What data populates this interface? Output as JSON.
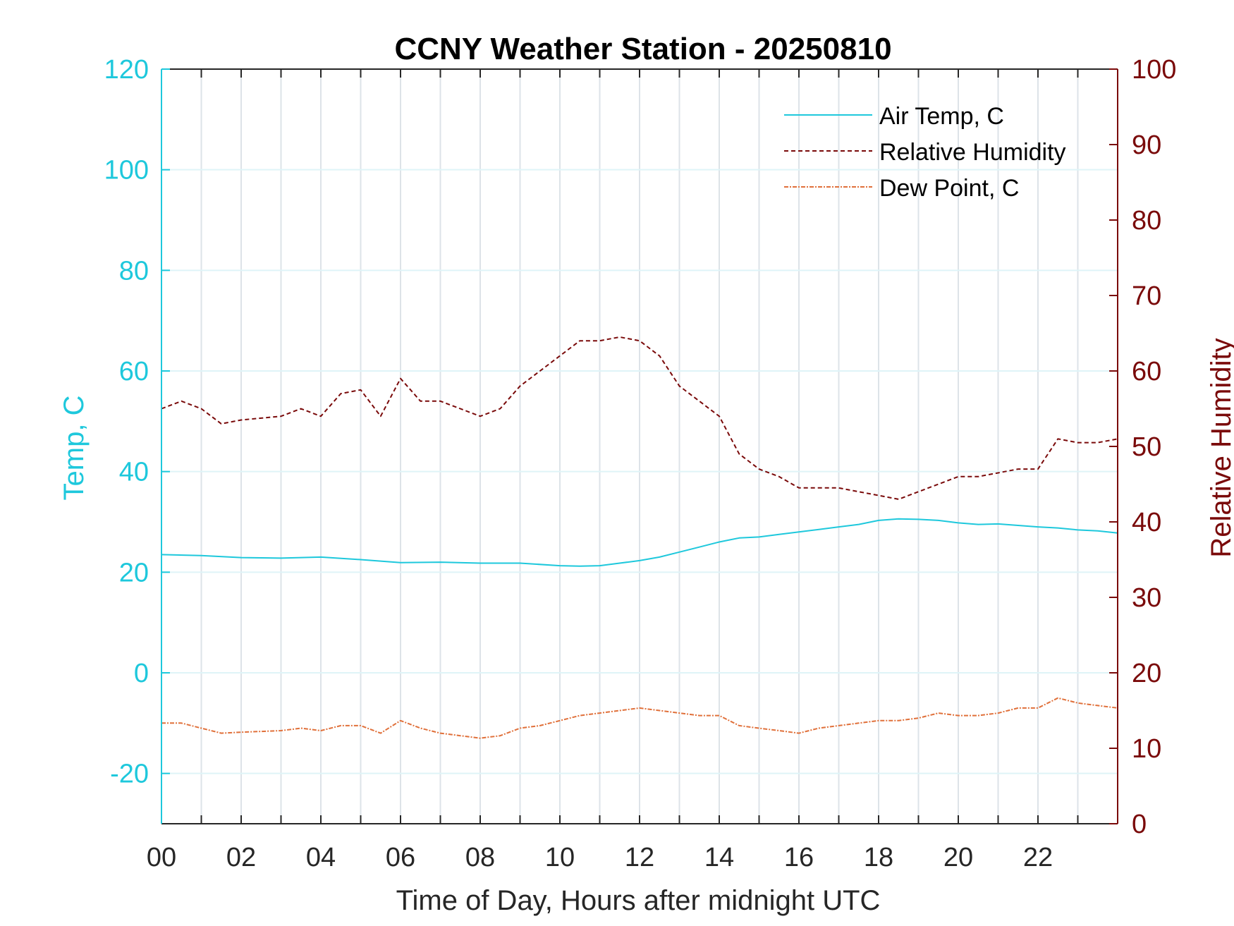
{
  "chart_data": {
    "type": "line",
    "title": "CCNY Weather Station - 20250810",
    "xlabel": "Time of Day, Hours after midnight UTC",
    "ylabel_left": "Temp, C",
    "ylabel_right": "Relative Humidity",
    "xlim": [
      0,
      24
    ],
    "ylim_left": [
      -30,
      120
    ],
    "ylim_right": [
      0,
      100
    ],
    "x_ticks": [
      0,
      2,
      4,
      6,
      8,
      10,
      12,
      14,
      16,
      18,
      20,
      22
    ],
    "x_tick_labels": [
      "00",
      "02",
      "04",
      "06",
      "08",
      "10",
      "12",
      "14",
      "16",
      "18",
      "20",
      "22"
    ],
    "y_left_ticks": [
      -20,
      0,
      20,
      40,
      60,
      80,
      100,
      120
    ],
    "y_right_ticks": [
      0,
      10,
      20,
      30,
      40,
      50,
      60,
      70,
      80,
      90,
      100
    ],
    "grid": "on",
    "legend_position": "top-right",
    "colors": {
      "air_temp": "#1ec8dc",
      "humidity": "#7a0a0a",
      "dew_point": "#e0703a",
      "left_axis": "#1ec8dc",
      "right_axis": "#7a0a0a"
    },
    "series": [
      {
        "name": "Air Temp, C",
        "axis": "left",
        "style": "solid",
        "x": [
          0,
          1,
          2,
          3,
          4,
          5,
          6,
          7,
          8,
          9,
          10,
          10.5,
          11,
          11.5,
          12,
          12.5,
          13,
          13.5,
          14,
          14.5,
          15,
          15.5,
          16,
          16.5,
          17,
          17.5,
          18,
          18.5,
          19,
          19.5,
          20,
          20.5,
          21,
          21.5,
          22,
          22.5,
          23,
          23.5,
          24
        ],
        "values": [
          23.5,
          23.3,
          22.9,
          22.8,
          23.0,
          22.5,
          21.9,
          22.0,
          21.8,
          21.8,
          21.3,
          21.2,
          21.3,
          21.8,
          22.3,
          23.0,
          24.0,
          25.0,
          26.0,
          26.8,
          27.0,
          27.5,
          28.0,
          28.5,
          29.0,
          29.5,
          30.3,
          30.6,
          30.5,
          30.3,
          29.8,
          29.5,
          29.6,
          29.3,
          29.0,
          28.8,
          28.4,
          28.2,
          27.8
        ]
      },
      {
        "name": "Relative Humidity",
        "axis": "right",
        "style": "dashed",
        "x": [
          0,
          0.5,
          1,
          1.5,
          2,
          3,
          3.5,
          4,
          4.5,
          5,
          5.5,
          6,
          6.5,
          7,
          7.5,
          8,
          8.5,
          9,
          9.5,
          10,
          10.5,
          11,
          11.5,
          12,
          12.5,
          13,
          13.5,
          14,
          14.5,
          15,
          15.5,
          16,
          16.5,
          17,
          17.5,
          18,
          18.5,
          19,
          19.5,
          20,
          20.5,
          21,
          21.5,
          22,
          22.5,
          23,
          23.5,
          24
        ],
        "values": [
          55.0,
          56.0,
          55.0,
          53.0,
          53.5,
          54.0,
          55.0,
          54.0,
          57.0,
          57.5,
          54.0,
          59.0,
          56.0,
          56.0,
          55.0,
          54.0,
          55.0,
          58.0,
          60.0,
          62.0,
          64.0,
          64.0,
          64.5,
          64.0,
          62.0,
          58.0,
          56.0,
          54.0,
          49.0,
          47.0,
          46.0,
          44.5,
          44.5,
          44.5,
          44.0,
          43.5,
          43.0,
          44.0,
          45.0,
          46.0,
          46.0,
          46.5,
          47.0,
          47.0,
          51.0,
          50.5,
          50.5,
          51.0
        ]
      },
      {
        "name": "Dew Point, C",
        "axis": "left",
        "style": "dashdot",
        "x": [
          0,
          0.5,
          1,
          1.5,
          2,
          3,
          3.5,
          4,
          4.5,
          5,
          5.5,
          6,
          6.5,
          7,
          7.5,
          8,
          8.5,
          9,
          9.5,
          10,
          10.5,
          11,
          11.5,
          12,
          12.5,
          13,
          13.5,
          14,
          14.5,
          15,
          15.5,
          16,
          16.5,
          17,
          17.5,
          18,
          18.5,
          19,
          19.5,
          20,
          20.5,
          21,
          21.5,
          22,
          22.5,
          23,
          23.5,
          24
        ],
        "values": [
          -10.0,
          -10.0,
          -11.0,
          -12.0,
          -11.8,
          -11.5,
          -11.0,
          -11.5,
          -10.5,
          -10.5,
          -12.0,
          -9.5,
          -11.0,
          -12.0,
          -12.5,
          -13.0,
          -12.5,
          -11.0,
          -10.5,
          -9.5,
          -8.5,
          -8.0,
          -7.5,
          -7.0,
          -7.5,
          -8.0,
          -8.5,
          -8.5,
          -10.5,
          -11.0,
          -11.5,
          -12.0,
          -11.0,
          -10.5,
          -10.0,
          -9.5,
          -9.5,
          -9.0,
          -8.0,
          -8.5,
          -8.5,
          -8.0,
          -7.0,
          -7.0,
          -5.0,
          -6.0,
          -6.5,
          -7.0
        ]
      }
    ]
  }
}
